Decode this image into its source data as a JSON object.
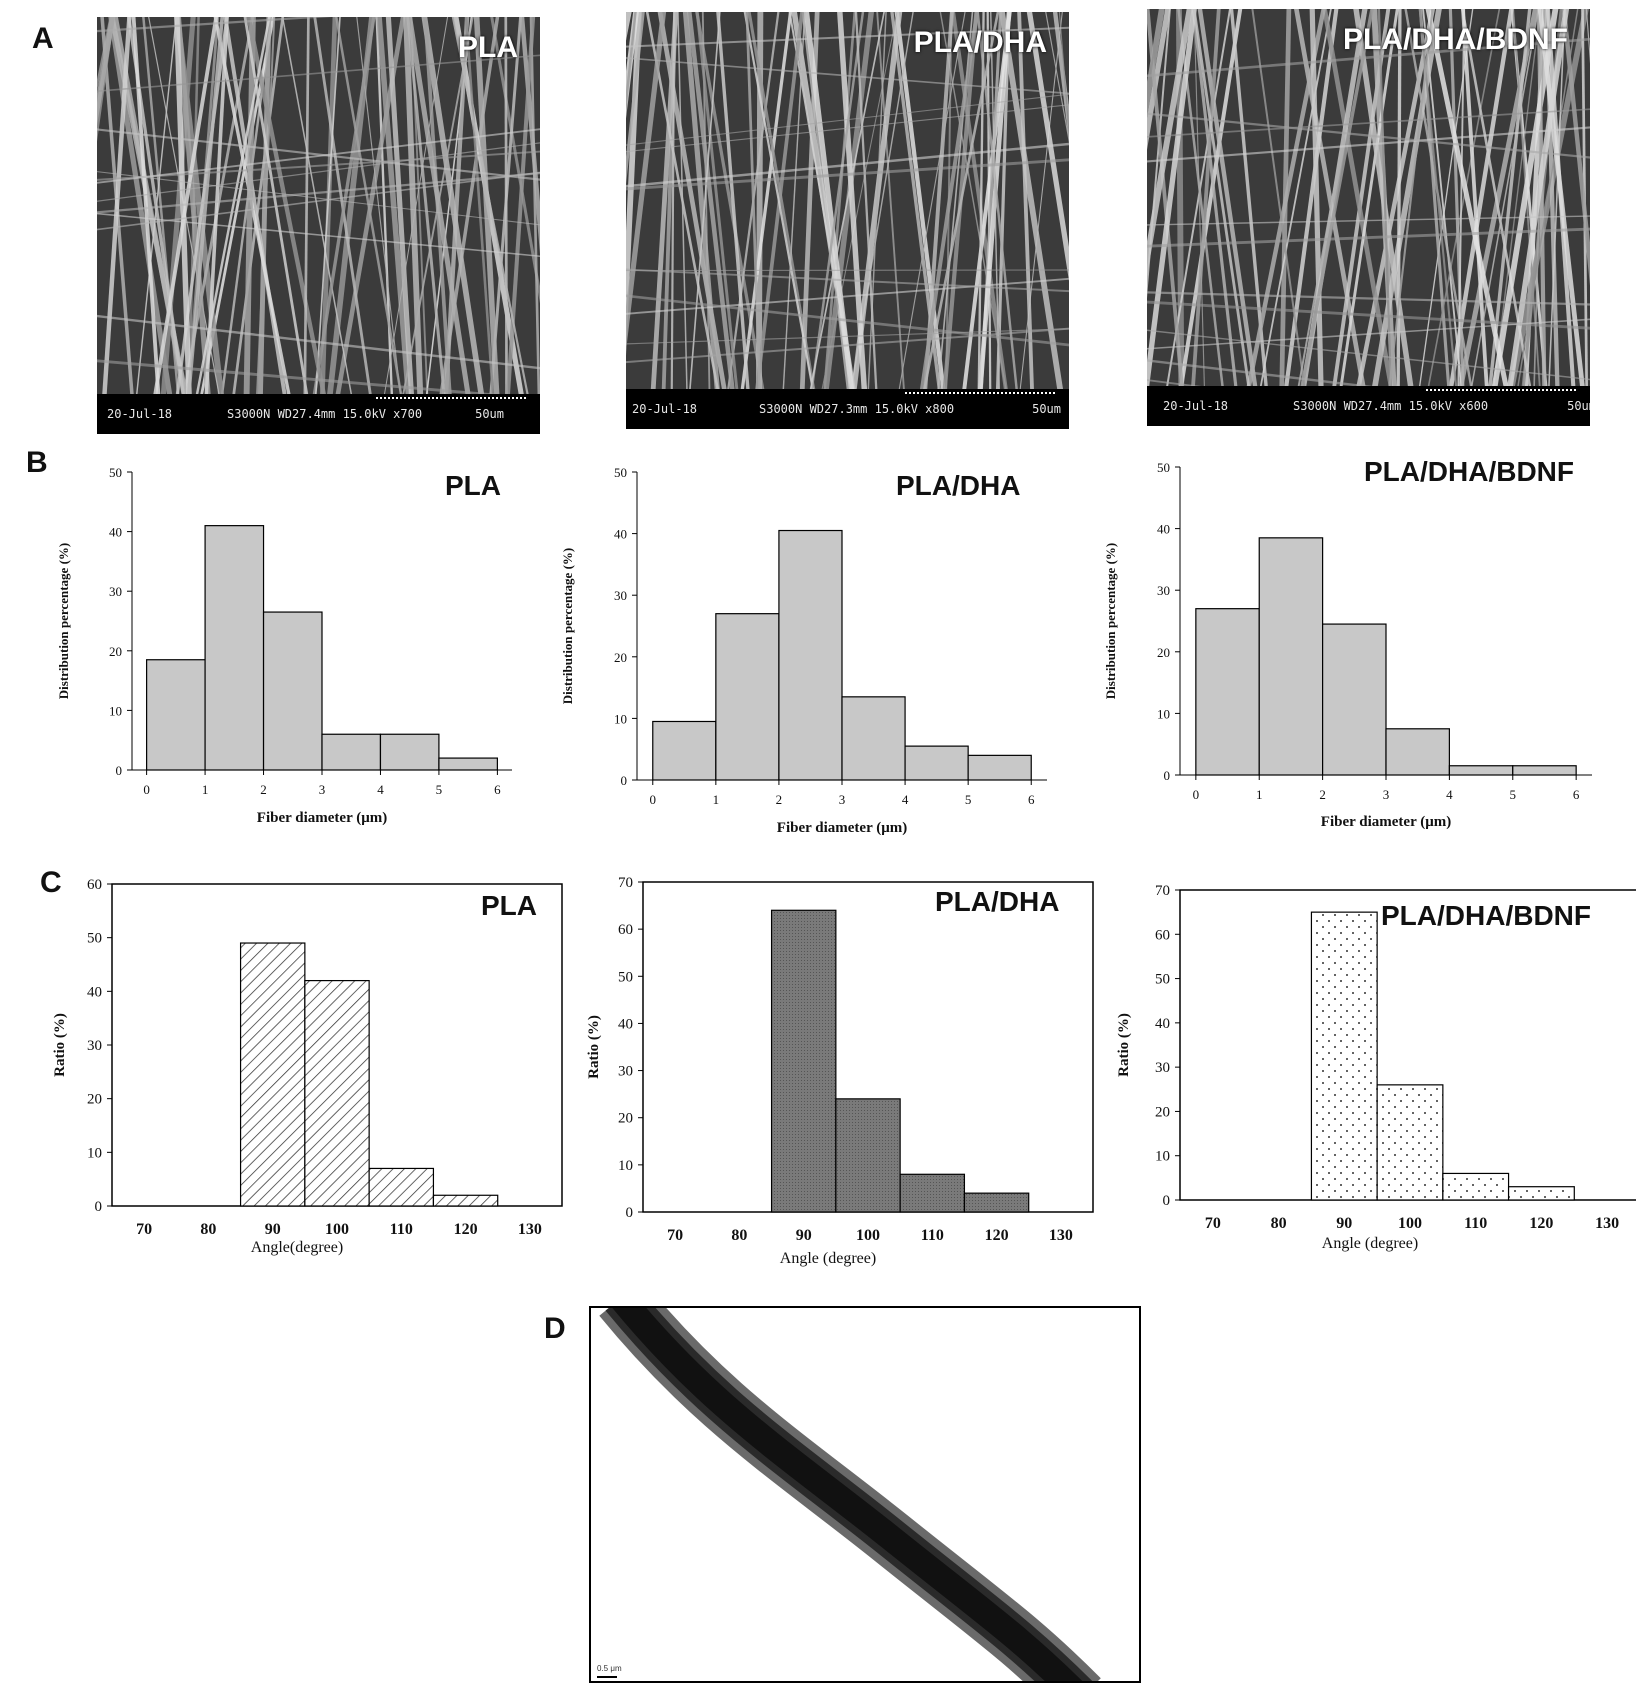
{
  "panels": {
    "a": "A",
    "b": "B",
    "c": "C",
    "d": "D"
  },
  "sem_images": [
    {
      "label": "PLA",
      "date": "20-Jul-18",
      "info": "S3000N WD27.4mm 15.0kV x700",
      "scale": "50um"
    },
    {
      "label": "PLA/DHA",
      "date": "20-Jul-18",
      "info": "S3000N WD27.3mm 15.0kV x800",
      "scale": "50um"
    },
    {
      "label": "PLA/DHA/BDNF",
      "date": "20-Jul-18",
      "info": "S3000N WD27.4mm 15.0kV x600",
      "scale": "50um"
    }
  ],
  "tem_image": {
    "scale_label": "0.5 μm"
  },
  "colors": {
    "bar_fill": "#c8c8c8",
    "dark_fill": "#7a7a7a",
    "stroke": "#000000"
  },
  "chart_data": [
    {
      "type": "bar",
      "title": "PLA",
      "xlabel": "Fiber diameter (μm)",
      "ylabel": "Distribution percentage (%)",
      "bin_edges": [
        0,
        1,
        2,
        3,
        4,
        5,
        6
      ],
      "values": [
        18.5,
        41,
        26.5,
        6,
        6,
        2
      ],
      "ylim": [
        0,
        50
      ],
      "yticks": [
        0,
        10,
        20,
        30,
        40,
        50
      ],
      "xticks": [
        0,
        1,
        2,
        3,
        4,
        5,
        6
      ]
    },
    {
      "type": "bar",
      "title": "PLA/DHA",
      "xlabel": "Fiber diameter (μm)",
      "ylabel": "Distribution percentage (%)",
      "bin_edges": [
        0,
        1,
        2,
        3,
        4,
        5,
        6
      ],
      "values": [
        9.5,
        27,
        40.5,
        13.5,
        5.5,
        4
      ],
      "ylim": [
        0,
        50
      ],
      "yticks": [
        0,
        10,
        20,
        30,
        40,
        50
      ],
      "xticks": [
        0,
        1,
        2,
        3,
        4,
        5,
        6
      ]
    },
    {
      "type": "bar",
      "title": "PLA/DHA/BDNF",
      "xlabel": "Fiber diameter (μm)",
      "ylabel": "Distribution percentage (%)",
      "bin_edges": [
        0,
        1,
        2,
        3,
        4,
        5,
        6
      ],
      "values": [
        27,
        38.5,
        24.5,
        7.5,
        1.5,
        1.5
      ],
      "ylim": [
        0,
        50
      ],
      "yticks": [
        0,
        10,
        20,
        30,
        40,
        50
      ],
      "xticks": [
        0,
        1,
        2,
        3,
        4,
        5,
        6
      ]
    },
    {
      "type": "bar",
      "title": "PLA",
      "xlabel": "Angle(degree)",
      "ylabel": "Ratio (%)",
      "bin_edges": [
        85,
        95,
        105,
        115,
        125
      ],
      "values": [
        49,
        42,
        7,
        2
      ],
      "xlim": [
        65,
        135
      ],
      "ylim": [
        0,
        60
      ],
      "yticks": [
        0,
        10,
        20,
        30,
        40,
        50,
        60
      ],
      "xticks": [
        70,
        80,
        90,
        100,
        110,
        120,
        130
      ],
      "fill": "hatch"
    },
    {
      "type": "bar",
      "title": "PLA/DHA",
      "xlabel": "Angle (degree)",
      "ylabel": "Ratio (%)",
      "bin_edges": [
        85,
        95,
        105,
        115,
        125
      ],
      "values": [
        64,
        24,
        8,
        4
      ],
      "xlim": [
        65,
        135
      ],
      "ylim": [
        0,
        70
      ],
      "yticks": [
        0,
        10,
        20,
        30,
        40,
        50,
        60,
        70
      ],
      "xticks": [
        70,
        80,
        90,
        100,
        110,
        120,
        130
      ],
      "fill": "dark"
    },
    {
      "type": "bar",
      "title": "PLA/DHA/BDNF",
      "xlabel": "Angle (degree)",
      "ylabel": "Ratio (%)",
      "bin_edges": [
        85,
        95,
        105,
        115,
        125
      ],
      "values": [
        65,
        26,
        6,
        3
      ],
      "xlim": [
        65,
        135
      ],
      "ylim": [
        0,
        70
      ],
      "yticks": [
        0,
        10,
        20,
        30,
        40,
        50,
        60,
        70
      ],
      "xticks": [
        70,
        80,
        90,
        100,
        110,
        120,
        130
      ],
      "fill": "dots"
    }
  ]
}
